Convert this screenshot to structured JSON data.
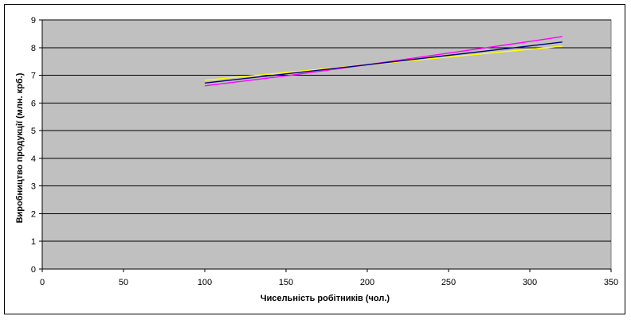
{
  "chart_data": {
    "type": "line",
    "title": "",
    "xlabel": "Чисельність робітників (чол.)",
    "ylabel": "Виробництво продукції (млн. крб.)",
    "xlim": [
      0,
      350
    ],
    "ylim": [
      0,
      9
    ],
    "x_ticks": [
      0,
      50,
      100,
      150,
      200,
      250,
      300,
      350
    ],
    "y_ticks": [
      0,
      1,
      2,
      3,
      4,
      5,
      6,
      7,
      8,
      9
    ],
    "grid": "horizontal",
    "legend": "none",
    "plot_background": "#c0c0c0",
    "series": [
      {
        "color": "#ffff00",
        "x": [
          100,
          320
        ],
        "y": [
          6.82,
          8.05
        ]
      },
      {
        "color": "#ff00ff",
        "x": [
          100,
          150,
          200,
          250,
          300,
          320
        ],
        "y": [
          6.62,
          6.98,
          7.38,
          7.8,
          8.22,
          8.4
        ]
      },
      {
        "color": "#000080",
        "x": [
          100,
          150,
          200,
          250,
          300,
          320
        ],
        "y": [
          6.72,
          7.05,
          7.38,
          7.72,
          8.06,
          8.2
        ]
      }
    ]
  }
}
